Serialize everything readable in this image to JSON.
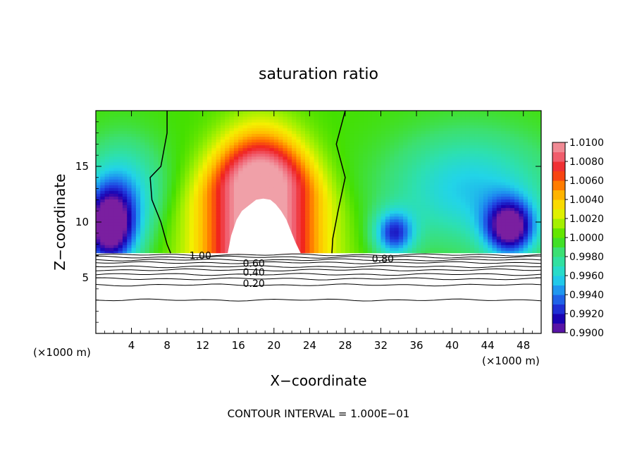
{
  "chart_data": {
    "type": "heatmap",
    "title": "saturation ratio",
    "xlabel": "X−coordinate",
    "ylabel": "Z−coordinate",
    "x_unit_label_left": "(×1000 m)",
    "x_unit_label_right": "(×1000 m)",
    "footer": "CONTOUR INTERVAL = 1.000E−01",
    "xlim": [
      0,
      50
    ],
    "ylim": [
      0,
      20
    ],
    "x_ticks": [
      "4",
      "8",
      "12",
      "16",
      "20",
      "24",
      "28",
      "32",
      "36",
      "40",
      "44",
      "48"
    ],
    "x_tick_values": [
      4,
      8,
      12,
      16,
      20,
      24,
      28,
      32,
      36,
      40,
      44,
      48
    ],
    "y_ticks": [
      "5",
      "10",
      "15"
    ],
    "y_tick_values": [
      5,
      10,
      15
    ],
    "colorbar": {
      "labels": [
        "1.0100",
        "1.0080",
        "1.0060",
        "1.0040",
        "1.0020",
        "1.0000",
        "0.9980",
        "0.9960",
        "0.9940",
        "0.9920",
        "0.9900"
      ],
      "min": 0.99,
      "max": 1.01,
      "colors": [
        "#7a1fa0",
        "#1a00b0",
        "#1f3fe0",
        "#1e8cf0",
        "#22d4e8",
        "#2de0b0",
        "#3ce070",
        "#44e000",
        "#a0f000",
        "#f4f000",
        "#ffc000",
        "#ff7000",
        "#f02020",
        "#f06070",
        "#f0a0a8"
      ]
    },
    "field_description_values": {
      "background": 1.0,
      "plume_center_x": 18.5,
      "plume_peak": 1.011,
      "dry_left_x": 2,
      "dry_right_x": 45,
      "cloud_base_z": 7.2
    },
    "contour_labels": [
      {
        "text": "1.00",
        "x": 10.5,
        "y": 7.0
      },
      {
        "text": "0.80",
        "x": 31.0,
        "y": 6.7
      },
      {
        "text": "0.60",
        "x": 16.5,
        "y": 6.3
      },
      {
        "text": "0.40",
        "x": 16.5,
        "y": 5.5
      },
      {
        "text": "0.20",
        "x": 16.5,
        "y": 4.5
      }
    ],
    "contour_lines_z": [
      7.05,
      6.85,
      6.6,
      6.35,
      6.0,
      5.7,
      5.3,
      4.9,
      4.35,
      3.0
    ],
    "saturation_line_left": [
      [
        8.0,
        20
      ],
      [
        8.0,
        18
      ],
      [
        7.3,
        15
      ],
      [
        6.1,
        14
      ],
      [
        6.3,
        12
      ],
      [
        7.3,
        10
      ],
      [
        8.0,
        8
      ],
      [
        8.4,
        7.2
      ]
    ],
    "saturation_line_right": [
      [
        28.0,
        20
      ],
      [
        27.0,
        17
      ],
      [
        28.0,
        14
      ],
      [
        27.2,
        11
      ],
      [
        26.6,
        8.5
      ],
      [
        26.5,
        7.2
      ]
    ]
  }
}
